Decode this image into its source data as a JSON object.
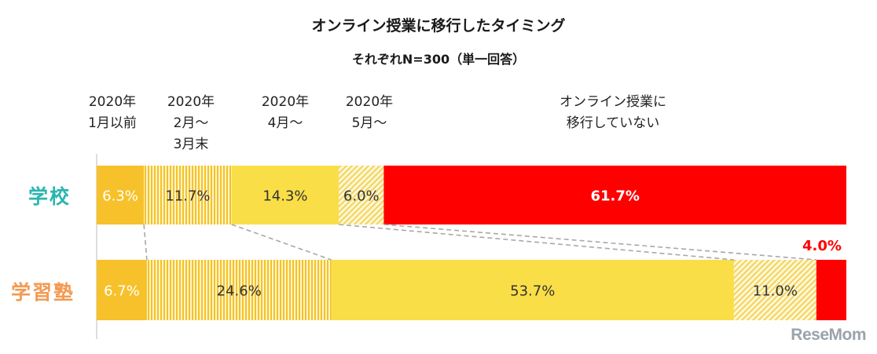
{
  "colors": {
    "orange": "#f6c12a",
    "yellow": "#f9de48",
    "yellow_light": "#fbe98a",
    "stripe_bg": "#fdf5c7",
    "red": "#ff0000",
    "school_label": "#2ab5b0",
    "juku_label": "#f39a53",
    "connector": "#a8a8a8",
    "red_text": "#ff0000"
  },
  "chart_data": {
    "type": "bar",
    "orientation": "horizontal",
    "stacked": true,
    "title": "オンライン授業に移行したタイミング",
    "subtitle": "それぞれN=300（単一回答）",
    "categories": [
      "学校",
      "学習塾"
    ],
    "series": [
      {
        "name": "2020年\n1月以前",
        "values": [
          6.3,
          6.7
        ],
        "fill": "solid-orange"
      },
      {
        "name": "2020年\n2月～\n3月末",
        "values": [
          11.7,
          24.6
        ],
        "fill": "vertical-stripes"
      },
      {
        "name": "2020年\n4月～",
        "values": [
          14.3,
          53.7
        ],
        "fill": "solid-yellow"
      },
      {
        "name": "2020年\n5月～",
        "values": [
          6.0,
          11.0
        ],
        "fill": "diagonal-hatch"
      },
      {
        "name": "オンライン授業に\n移行していない",
        "values": [
          61.7,
          4.0
        ],
        "fill": "solid-red"
      }
    ],
    "data_labels": [
      [
        "6.3%",
        "11.7%",
        "14.3%",
        "6.0%",
        "61.7%"
      ],
      [
        "6.7%",
        "24.6%",
        "53.7%",
        "11.0%",
        "4.0%"
      ]
    ],
    "xlim": [
      0,
      100
    ],
    "unit": "%",
    "grid": false,
    "legend": "top"
  },
  "watermark": "ReseMom"
}
